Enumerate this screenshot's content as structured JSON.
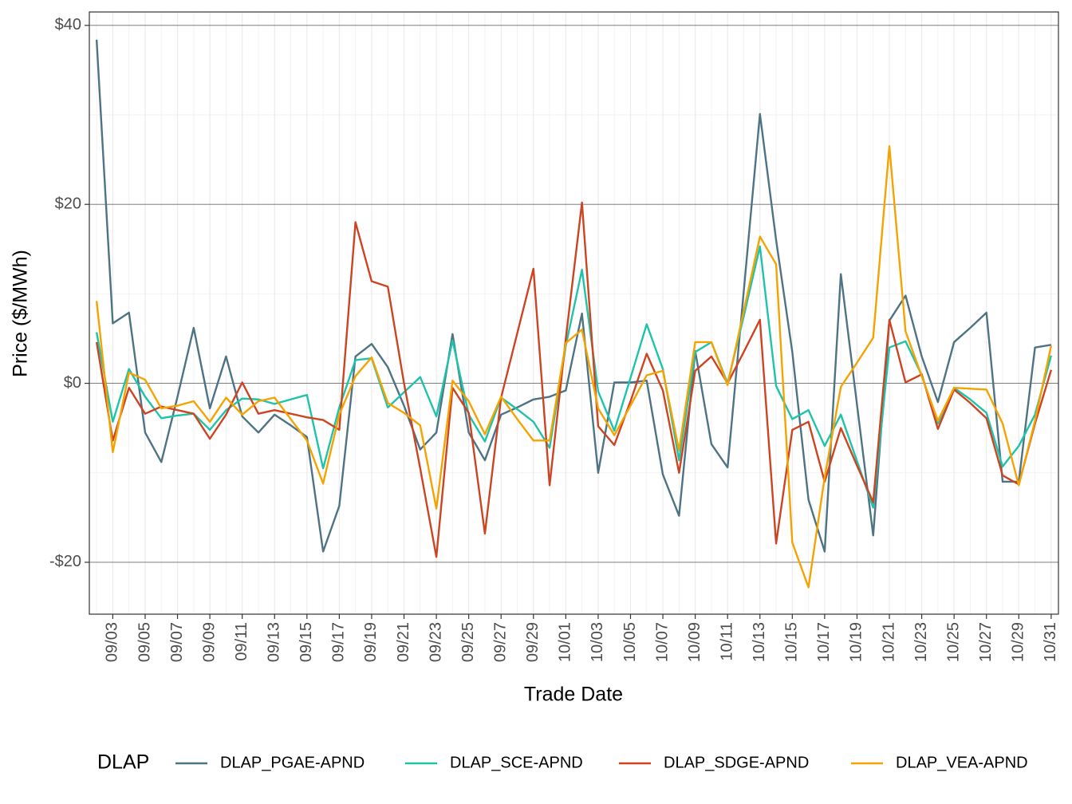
{
  "chart_data": {
    "type": "line",
    "x_label": "Trade Date",
    "y_label": "Price ($/MWh)",
    "legend_title": "DLAP",
    "legend_position": "bottom",
    "grid": true,
    "x": [
      "09/02",
      "09/03",
      "09/04",
      "09/05",
      "09/06",
      "09/07",
      "09/08",
      "09/09",
      "09/10",
      "09/11",
      "09/12",
      "09/13",
      "09/14",
      "09/15",
      "09/16",
      "09/17",
      "09/18",
      "09/19",
      "09/20",
      "09/21",
      "09/22",
      "09/23",
      "09/24",
      "09/25",
      "09/26",
      "09/27",
      "09/28",
      "09/29",
      "09/30",
      "10/01",
      "10/02",
      "10/03",
      "10/04",
      "10/05",
      "10/06",
      "10/07",
      "10/08",
      "10/09",
      "10/10",
      "10/11",
      "10/12",
      "10/13",
      "10/14",
      "10/15",
      "10/16",
      "10/17",
      "10/18",
      "10/19",
      "10/20",
      "10/21",
      "10/22",
      "10/23",
      "10/24",
      "10/25",
      "10/26",
      "10/27",
      "10/28",
      "10/29",
      "10/30",
      "10/31"
    ],
    "xticks": [
      "09/03",
      "09/05",
      "09/07",
      "09/09",
      "09/11",
      "09/13",
      "09/15",
      "09/17",
      "09/19",
      "09/21",
      "09/23",
      "09/25",
      "09/27",
      "09/29",
      "10/01",
      "10/03",
      "10/05",
      "10/07",
      "10/09",
      "10/11",
      "10/13",
      "10/15",
      "10/17",
      "10/19",
      "10/21",
      "10/23",
      "10/25",
      "10/27",
      "10/29",
      "10/31"
    ],
    "ylim": [
      -25.8,
      41.5
    ],
    "yticks": [
      {
        "value": -20,
        "label": "-$20"
      },
      {
        "value": 0,
        "label": "$0"
      },
      {
        "value": 20,
        "label": "$20"
      },
      {
        "value": 40,
        "label": "$40"
      }
    ],
    "series": [
      {
        "name": "DLAP_PGAE-APND",
        "color": "#4e7384",
        "values": [
          38.4,
          6.7,
          7.9,
          -5.5,
          -8.8,
          -1.5,
          6.2,
          -2.8,
          3.0,
          -3.7,
          -5.5,
          -3.5,
          -4.7,
          -6.0,
          -18.8,
          -13.7,
          3.0,
          4.4,
          1.8,
          -2.5,
          -7.4,
          -5.5,
          5.5,
          -5.5,
          -8.6,
          -3.5,
          -2.7,
          -1.8,
          -1.5,
          -0.8,
          7.8,
          -10.0,
          0.1,
          0.1,
          0.3,
          -10.2,
          -14.8,
          3.6,
          -6.8,
          -9.4,
          10.3,
          30.1,
          16.0,
          3.5,
          -13.0,
          -18.8,
          12.2,
          -2.4,
          -17.0,
          7.0,
          9.8,
          3.0,
          -2.1,
          4.6,
          6.2,
          7.9,
          -11.0,
          -11.0,
          4.0,
          4.3
        ]
      },
      {
        "name": "DLAP_SCE-APND",
        "color": "#1fc3aa",
        "values": [
          5.7,
          -4.3,
          1.6,
          -1.5,
          -3.9,
          -3.6,
          -3.4,
          -5.2,
          -3.0,
          -1.7,
          -1.8,
          -2.3,
          -1.8,
          -1.3,
          -9.5,
          -2.7,
          2.6,
          2.8,
          -2.7,
          -1.0,
          0.7,
          -3.7,
          4.8,
          -3.5,
          -6.5,
          -1.6,
          -2.9,
          -4.3,
          -7.2,
          4.2,
          12.7,
          -0.9,
          -5.3,
          0.6,
          6.6,
          1.6,
          -8.6,
          3.5,
          4.6,
          0.0,
          7.5,
          15.3,
          -0.3,
          -4.0,
          -3.0,
          -7.0,
          -3.5,
          -8.7,
          -13.9,
          4.0,
          4.7,
          0.9,
          -4.5,
          -0.5,
          -1.8,
          -3.3,
          -9.3,
          -7.0,
          -3.5,
          3.1
        ]
      },
      {
        "name": "DLAP_SDGE-APND",
        "color": "#cc4422",
        "values": [
          4.6,
          -6.4,
          -0.5,
          -3.4,
          -2.6,
          -3.0,
          -3.4,
          -6.2,
          -3.5,
          0.1,
          -3.4,
          -3.0,
          -3.4,
          -3.8,
          -4.1,
          -5.2,
          18.0,
          11.4,
          10.8,
          0.0,
          -9.5,
          -19.4,
          -0.5,
          -3.3,
          -16.8,
          -1.6,
          5.6,
          12.8,
          -11.4,
          5.0,
          20.2,
          -4.8,
          -6.9,
          -2.0,
          3.3,
          -0.8,
          -10.0,
          1.4,
          3.0,
          0.0,
          3.5,
          7.1,
          -17.9,
          -5.2,
          -4.3,
          -11.0,
          -5.0,
          -9.2,
          -13.3,
          7.1,
          0.1,
          1.0,
          -5.1,
          -0.7,
          -2.2,
          -3.9,
          -10.3,
          -11.3,
          -4.5,
          1.5
        ]
      },
      {
        "name": "DLAP_VEA-APND",
        "color": "#f5a300",
        "values": [
          9.2,
          -7.7,
          1.2,
          0.4,
          -2.8,
          -2.5,
          -2.0,
          -4.3,
          -1.6,
          -3.5,
          -2.0,
          -1.6,
          -4.0,
          -6.4,
          -11.2,
          -3.5,
          0.8,
          2.9,
          -2.2,
          -3.3,
          -4.7,
          -14.0,
          0.3,
          -2.0,
          -5.7,
          -1.5,
          -4.0,
          -6.4,
          -6.4,
          4.5,
          6.0,
          -2.8,
          -5.8,
          -2.5,
          0.9,
          1.4,
          -7.5,
          4.6,
          4.6,
          -0.2,
          8.1,
          16.4,
          13.3,
          -17.8,
          -22.8,
          -10.5,
          -0.4,
          2.3,
          5.1,
          26.5,
          5.8,
          0.8,
          -4.2,
          -0.5,
          -0.6,
          -0.7,
          -4.5,
          -11.4,
          -4.2,
          4.2
        ]
      }
    ]
  }
}
